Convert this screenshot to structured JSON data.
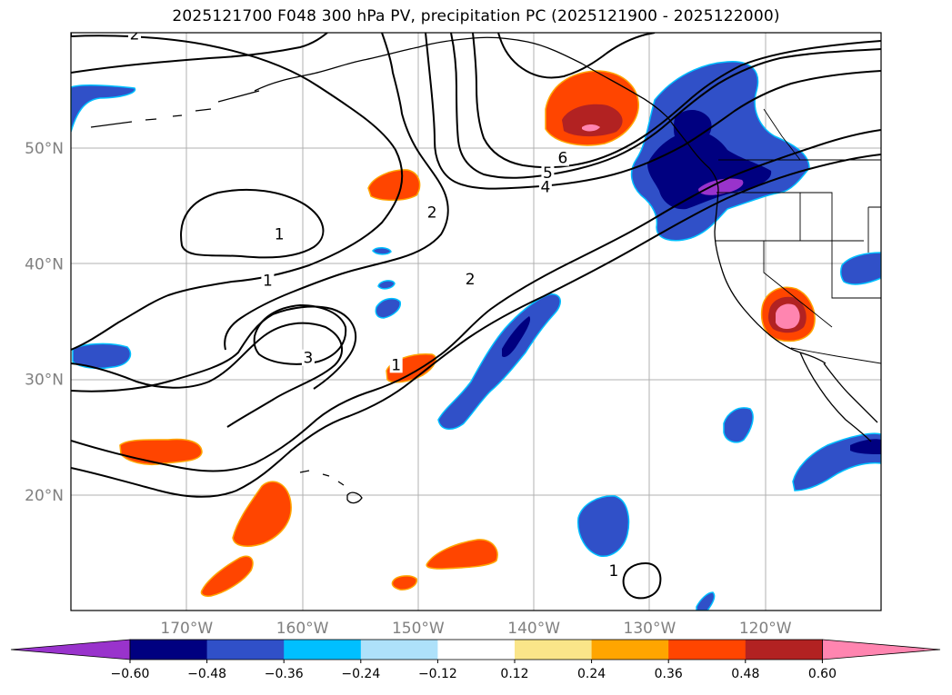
{
  "figure": {
    "title": "2025121700 F048 300 hPa PV, precipitation PC (2025121900 - 2025122000)"
  },
  "map": {
    "lon_range": [
      -180,
      -110
    ],
    "lat_range": [
      10,
      60
    ],
    "lon_ticks": [
      {
        "lon": -170,
        "label": "170°W"
      },
      {
        "lon": -160,
        "label": "160°W"
      },
      {
        "lon": -150,
        "label": "150°W"
      },
      {
        "lon": -140,
        "label": "140°W"
      },
      {
        "lon": -130,
        "label": "130°W"
      },
      {
        "lon": -120,
        "label": "120°W"
      }
    ],
    "lat_ticks": [
      {
        "lat": 20,
        "label": "20°N"
      },
      {
        "lat": 30,
        "label": "30°N"
      },
      {
        "lat": 40,
        "label": "40°N"
      },
      {
        "lat": 50,
        "label": "50°N"
      }
    ],
    "contour_labels": [
      {
        "text": "1",
        "lon": -162,
        "lat": 42.5
      },
      {
        "text": "1",
        "lon": -163,
        "lat": 38.5
      },
      {
        "text": "3",
        "lon": -159.5,
        "lat": 31.8
      },
      {
        "text": "1",
        "lon": -151.9,
        "lat": 31.2
      },
      {
        "text": "2",
        "lon": -148.8,
        "lat": 44.4
      },
      {
        "text": "2",
        "lon": -145.5,
        "lat": 38.6
      },
      {
        "text": "6",
        "lon": -137.5,
        "lat": 49.1
      },
      {
        "text": "5",
        "lon": -138.8,
        "lat": 47.8
      },
      {
        "text": "4",
        "lon": -139.0,
        "lat": 46.6
      },
      {
        "text": "1",
        "lon": -133.1,
        "lat": 13.4
      },
      {
        "text": "2",
        "lon": -174.5,
        "lat": 59.8
      }
    ]
  },
  "colorbar": {
    "tick_labels": [
      "−0.60",
      "−0.48",
      "−0.36",
      "−0.24",
      "−0.12",
      "0.12",
      "0.24",
      "0.36",
      "0.48",
      "0.60"
    ],
    "colors": [
      "#9933cc",
      "#000080",
      "#3050c8",
      "#00bfff",
      "#aee1fa",
      "#ffffff",
      "#fae589",
      "#ffa500",
      "#ff4500",
      "#b22222",
      "#ff85b0",
      "#ff85b0"
    ]
  }
}
